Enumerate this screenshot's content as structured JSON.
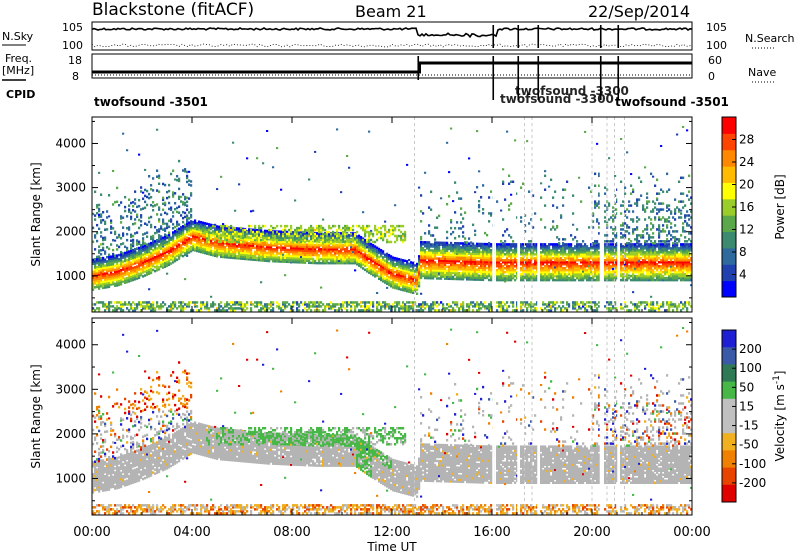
{
  "header": {
    "station": "Blackstone (fitACF)",
    "beam": "Beam 21",
    "date": "22/Sep/2014"
  },
  "top_panels": {
    "nsky_label": "N.Sky",
    "nsearch_label": "N.Search",
    "freq_label": "Freq.",
    "freq_unit": "[MHz]",
    "nave_label": "Nave",
    "cpid_label": "CPID",
    "noise_ticks": [
      "10^5",
      "10^0"
    ],
    "freq_ticks": [
      "18",
      "8"
    ],
    "nave_ticks": [
      "60",
      "0"
    ],
    "cpid_start": "twofsound -3501",
    "cpid_end": "twofsound -3501",
    "cpid_mid": "twofsound -3300"
  },
  "colors": {
    "power_scale": [
      "#0000ff",
      "#2040b0",
      "#2f6a9e",
      "#3c8a70",
      "#5aa84a",
      "#9acc2a",
      "#ffff00",
      "#ffbb00",
      "#ff8800",
      "#ff4400",
      "#ff0000"
    ],
    "velocity_scale": [
      "#1f1fd4",
      "#3a5aa8",
      "#2f7a55",
      "#47b847",
      "#c0c0c0",
      "#c0c0c0",
      "#f0b020",
      "#f08000",
      "#e84400",
      "#e00000"
    ],
    "gray_scatter": "#b4b4b4"
  },
  "chart_data": [
    {
      "type": "heatmap",
      "panel": "power",
      "xlabel": "Time UT",
      "ylabel": "Slant Range [km]",
      "x_ticks": [
        "00:00",
        "04:00",
        "08:00",
        "12:00",
        "16:00",
        "20:00",
        "00:00"
      ],
      "y_ticks": [
        1000,
        2000,
        3000,
        4000
      ],
      "xlim_hours": [
        0,
        24
      ],
      "ylim_km": [
        180,
        4600
      ],
      "colorbar": {
        "label": "Power [dB]",
        "range": [
          0,
          32
        ],
        "ticks": [
          4,
          8,
          12,
          16,
          20,
          24,
          28
        ]
      },
      "main_echo_band_km": [
        {
          "t": 0.0,
          "center": 1000
        },
        {
          "t": 1.0,
          "center": 1100
        },
        {
          "t": 2.0,
          "center": 1300
        },
        {
          "t": 3.0,
          "center": 1550
        },
        {
          "t": 4.0,
          "center": 1900
        },
        {
          "t": 5.0,
          "center": 1750
        },
        {
          "t": 7.0,
          "center": 1650
        },
        {
          "t": 9.0,
          "center": 1600
        },
        {
          "t": 10.5,
          "center": 1600
        },
        {
          "t": 11.0,
          "center": 1400
        },
        {
          "t": 12.0,
          "center": 1050
        },
        {
          "t": 13.0,
          "center": 900
        },
        {
          "t": 13.1,
          "center": 1350
        },
        {
          "t": 16.0,
          "center": 1300
        },
        {
          "t": 20.0,
          "center": 1300
        },
        {
          "t": 24.0,
          "center": 1300
        }
      ]
    },
    {
      "type": "heatmap",
      "panel": "velocity",
      "xlabel": "Time UT",
      "ylabel": "Slant Range [km]",
      "x_ticks": [
        "00:00",
        "04:00",
        "08:00",
        "12:00",
        "16:00",
        "20:00",
        "00:00"
      ],
      "y_ticks": [
        1000,
        2000,
        3000,
        4000
      ],
      "xlim_hours": [
        0,
        24
      ],
      "ylim_km": [
        180,
        4600
      ],
      "colorbar": {
        "label": "Velocity [m s",
        "label_exponent": "-1",
        "label_close": "]",
        "ticks": [
          "200",
          "100",
          "50",
          "15",
          "-15",
          "-50",
          "-100",
          "-200"
        ]
      }
    }
  ]
}
